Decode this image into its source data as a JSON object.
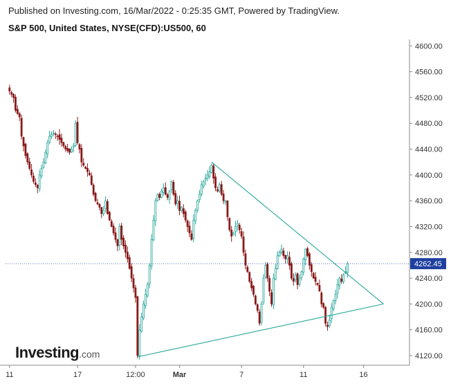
{
  "header": {
    "published": "Published on Investing.com, 16/Mar/2022 - 0:25:35 GMT, Powered by TradingView.",
    "symbol": "S&P 500, United States, NYSE(CFD):US500, 60"
  },
  "logo": {
    "brand": "Investing",
    "suffix": ".com"
  },
  "colors": {
    "up": "#26a69a",
    "down": "#8b1a1a",
    "trendline": "#26a69a",
    "price_line": "#1f3f9f",
    "price_badge": "#1f3f9f",
    "axis": "#555555"
  },
  "chart_data": {
    "type": "candlestick",
    "y_ticks": [
      "4600.00",
      "4560.00",
      "4520.00",
      "4480.00",
      "4440.00",
      "4400.00",
      "4360.00",
      "4320.00",
      "4280.00",
      "4240.00",
      "4200.00",
      "4160.00",
      "4120.00"
    ],
    "ylim": [
      4105,
      4610
    ],
    "x_ticks": [
      "11",
      "17",
      "12:00",
      "Mar",
      "7",
      "11",
      "16"
    ],
    "x_tick_positions": [
      0,
      34,
      63,
      85,
      116,
      147,
      177
    ],
    "x_range": [
      -2,
      200
    ],
    "last_price": "4262.45",
    "last_price_value": 4262.45,
    "trendlines": [
      {
        "name": "upper",
        "from": [
          101,
          4420
        ],
        "to": [
          187,
          4200
        ]
      },
      {
        "name": "lower",
        "from": [
          64,
          4118
        ],
        "to": [
          187,
          4200
        ]
      }
    ],
    "close_path": [
      [
        0,
        4530
      ],
      [
        2,
        4520
      ],
      [
        3,
        4500
      ],
      [
        5,
        4490
      ],
      [
        6,
        4460
      ],
      [
        8,
        4430
      ],
      [
        9,
        4420
      ],
      [
        11,
        4400
      ],
      [
        12,
        4390
      ],
      [
        14,
        4380
      ],
      [
        15,
        4400
      ],
      [
        17,
        4420
      ],
      [
        19,
        4450
      ],
      [
        20,
        4460
      ],
      [
        22,
        4465
      ],
      [
        24,
        4460
      ],
      [
        26,
        4450
      ],
      [
        28,
        4440
      ],
      [
        30,
        4435
      ],
      [
        32,
        4445
      ],
      [
        33,
        4480
      ],
      [
        34,
        4450
      ],
      [
        35,
        4440
      ],
      [
        36,
        4420
      ],
      [
        38,
        4410
      ],
      [
        40,
        4400
      ],
      [
        41,
        4385
      ],
      [
        42,
        4370
      ],
      [
        43,
        4360
      ],
      [
        44,
        4355
      ],
      [
        45,
        4350
      ],
      [
        46,
        4340
      ],
      [
        47,
        4345
      ],
      [
        48,
        4360
      ],
      [
        49,
        4340
      ],
      [
        50,
        4330
      ],
      [
        51,
        4320
      ],
      [
        52,
        4310
      ],
      [
        53,
        4300
      ],
      [
        54,
        4290
      ],
      [
        55,
        4320
      ],
      [
        56,
        4300
      ],
      [
        57,
        4290
      ],
      [
        58,
        4280
      ],
      [
        59,
        4270
      ],
      [
        60,
        4255
      ],
      [
        61,
        4240
      ],
      [
        62,
        4225
      ],
      [
        63,
        4210
      ],
      [
        64,
        4120
      ],
      [
        65,
        4160
      ],
      [
        66,
        4180
      ],
      [
        67,
        4200
      ],
      [
        68,
        4215
      ],
      [
        69,
        4230
      ],
      [
        70,
        4260
      ],
      [
        71,
        4300
      ],
      [
        72,
        4330
      ],
      [
        73,
        4360
      ],
      [
        74,
        4370
      ],
      [
        75,
        4365
      ],
      [
        76,
        4375
      ],
      [
        77,
        4380
      ],
      [
        78,
        4370
      ],
      [
        79,
        4365
      ],
      [
        80,
        4375
      ],
      [
        81,
        4390
      ],
      [
        82,
        4370
      ],
      [
        83,
        4355
      ],
      [
        84,
        4360
      ],
      [
        85,
        4345
      ],
      [
        86,
        4350
      ],
      [
        87,
        4340
      ],
      [
        88,
        4330
      ],
      [
        89,
        4320
      ],
      [
        90,
        4310
      ],
      [
        91,
        4300
      ],
      [
        92,
        4330
      ],
      [
        93,
        4345
      ],
      [
        94,
        4360
      ],
      [
        95,
        4370
      ],
      [
        96,
        4385
      ],
      [
        97,
        4390
      ],
      [
        98,
        4395
      ],
      [
        99,
        4400
      ],
      [
        100,
        4405
      ],
      [
        101,
        4415
      ],
      [
        102,
        4395
      ],
      [
        103,
        4380
      ],
      [
        104,
        4375
      ],
      [
        105,
        4385
      ],
      [
        106,
        4370
      ],
      [
        107,
        4360
      ],
      [
        108,
        4360
      ],
      [
        109,
        4335
      ],
      [
        110,
        4315
      ],
      [
        111,
        4305
      ],
      [
        112,
        4310
      ],
      [
        113,
        4320
      ],
      [
        114,
        4325
      ],
      [
        115,
        4315
      ],
      [
        116,
        4305
      ],
      [
        117,
        4280
      ],
      [
        118,
        4260
      ],
      [
        119,
        4250
      ],
      [
        120,
        4235
      ],
      [
        121,
        4225
      ],
      [
        122,
        4215
      ],
      [
        123,
        4200
      ],
      [
        124,
        4190
      ],
      [
        125,
        4170
      ],
      [
        126,
        4200
      ],
      [
        127,
        4240
      ],
      [
        128,
        4260
      ],
      [
        129,
        4240
      ],
      [
        130,
        4220
      ],
      [
        131,
        4200
      ],
      [
        132,
        4240
      ],
      [
        133,
        4255
      ],
      [
        134,
        4275
      ],
      [
        135,
        4280
      ],
      [
        136,
        4285
      ],
      [
        137,
        4275
      ],
      [
        138,
        4270
      ],
      [
        139,
        4275
      ],
      [
        140,
        4260
      ],
      [
        141,
        4240
      ],
      [
        142,
        4235
      ],
      [
        143,
        4245
      ],
      [
        144,
        4230
      ],
      [
        145,
        4240
      ],
      [
        146,
        4250
      ],
      [
        147,
        4270
      ],
      [
        148,
        4285
      ],
      [
        149,
        4275
      ],
      [
        150,
        4260
      ],
      [
        151,
        4250
      ],
      [
        152,
        4240
      ],
      [
        153,
        4235
      ],
      [
        154,
        4230
      ],
      [
        155,
        4220
      ],
      [
        156,
        4200
      ],
      [
        157,
        4195
      ],
      [
        158,
        4170
      ],
      [
        159,
        4165
      ],
      [
        160,
        4175
      ],
      [
        161,
        4195
      ],
      [
        162,
        4205
      ],
      [
        163,
        4215
      ],
      [
        164,
        4230
      ],
      [
        165,
        4240
      ],
      [
        166,
        4235
      ],
      [
        167,
        4245
      ],
      [
        168,
        4250
      ],
      [
        169,
        4262
      ]
    ]
  }
}
